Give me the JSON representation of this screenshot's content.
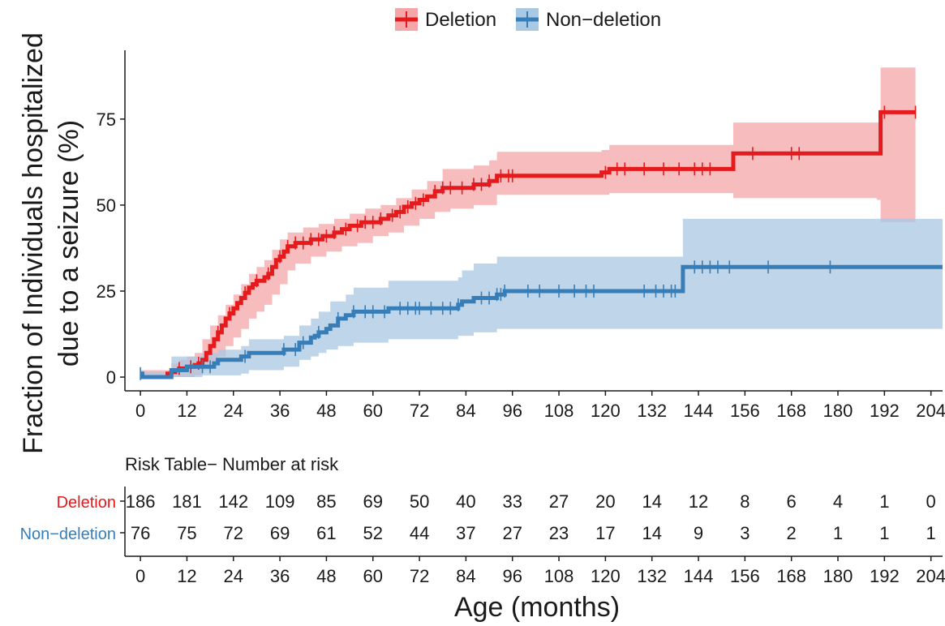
{
  "chart_data": {
    "type": "step",
    "title": "",
    "xlabel": "Age (months)",
    "ylabel_lines": [
      "Fraction of Individuals hospitalized",
      "due to a seizure (%)"
    ],
    "xlim": [
      -4,
      207
    ],
    "ylim": [
      -4,
      95
    ],
    "x_ticks": [
      0,
      12,
      24,
      36,
      48,
      60,
      72,
      84,
      96,
      108,
      120,
      132,
      144,
      156,
      168,
      180,
      192,
      204
    ],
    "y_ticks": [
      0,
      25,
      50,
      75
    ],
    "legend_position": "top",
    "series": [
      {
        "name": "Deletion",
        "color": "#e41a1c",
        "band_color": "#f4a6a8",
        "steps": [
          [
            0,
            0
          ],
          [
            6,
            0
          ],
          [
            7,
            1
          ],
          [
            8,
            1.5
          ],
          [
            9,
            2
          ],
          [
            10,
            2.5
          ],
          [
            12,
            3
          ],
          [
            14,
            3.5
          ],
          [
            15,
            4
          ],
          [
            16,
            5
          ],
          [
            17,
            7
          ],
          [
            18,
            9
          ],
          [
            19,
            11
          ],
          [
            20,
            13
          ],
          [
            21,
            15
          ],
          [
            22,
            17
          ],
          [
            23,
            18.5
          ],
          [
            24,
            20
          ],
          [
            25,
            21.5
          ],
          [
            26,
            23
          ],
          [
            27,
            24.5
          ],
          [
            28,
            26
          ],
          [
            29,
            27
          ],
          [
            30,
            28
          ],
          [
            32,
            29
          ],
          [
            33,
            30
          ],
          [
            34,
            32
          ],
          [
            35,
            34
          ],
          [
            36,
            35
          ],
          [
            37,
            36.5
          ],
          [
            38,
            38
          ],
          [
            40,
            39
          ],
          [
            44,
            40
          ],
          [
            47,
            41
          ],
          [
            50,
            42
          ],
          [
            52,
            43
          ],
          [
            54,
            44
          ],
          [
            57,
            45
          ],
          [
            62,
            46
          ],
          [
            64,
            47
          ],
          [
            66,
            48
          ],
          [
            68,
            49.5
          ],
          [
            70,
            50.5
          ],
          [
            72,
            51.5
          ],
          [
            74,
            52.5
          ],
          [
            76,
            54
          ],
          [
            78,
            55
          ],
          [
            86,
            56
          ],
          [
            90,
            57
          ],
          [
            92,
            58.5
          ],
          [
            119,
            59.5
          ],
          [
            121,
            60.5
          ],
          [
            153,
            65
          ],
          [
            190,
            65
          ],
          [
            191,
            77
          ],
          [
            200,
            77
          ]
        ],
        "ci_upper": [
          [
            0,
            2
          ],
          [
            6,
            2
          ],
          [
            8,
            4
          ],
          [
            10,
            5
          ],
          [
            12,
            6
          ],
          [
            14,
            7
          ],
          [
            16,
            11
          ],
          [
            18,
            15
          ],
          [
            20,
            18
          ],
          [
            22,
            21
          ],
          [
            24,
            24
          ],
          [
            26,
            27
          ],
          [
            28,
            30
          ],
          [
            30,
            32
          ],
          [
            32,
            34
          ],
          [
            34,
            37
          ],
          [
            36,
            40
          ],
          [
            38,
            42
          ],
          [
            42,
            43.5
          ],
          [
            46,
            44.5
          ],
          [
            50,
            46
          ],
          [
            54,
            47.5
          ],
          [
            58,
            49
          ],
          [
            62,
            50
          ],
          [
            66,
            52
          ],
          [
            70,
            54.5
          ],
          [
            74,
            57
          ],
          [
            78,
            60.5
          ],
          [
            86,
            61.5
          ],
          [
            90,
            63
          ],
          [
            92,
            65.5
          ],
          [
            119,
            66
          ],
          [
            121,
            67.5
          ],
          [
            153,
            74
          ],
          [
            190,
            74
          ],
          [
            191,
            90
          ],
          [
            200,
            90
          ]
        ],
        "ci_lower": [
          [
            0,
            0
          ],
          [
            6,
            0
          ],
          [
            10,
            0
          ],
          [
            14,
            0.5
          ],
          [
            16,
            2
          ],
          [
            18,
            4
          ],
          [
            20,
            6
          ],
          [
            22,
            9
          ],
          [
            24,
            11.5
          ],
          [
            26,
            14
          ],
          [
            28,
            17
          ],
          [
            30,
            19
          ],
          [
            32,
            21
          ],
          [
            34,
            24
          ],
          [
            36,
            27
          ],
          [
            38,
            31
          ],
          [
            40,
            33
          ],
          [
            44,
            35
          ],
          [
            48,
            36.5
          ],
          [
            52,
            38
          ],
          [
            56,
            39
          ],
          [
            60,
            41
          ],
          [
            64,
            42
          ],
          [
            68,
            44
          ],
          [
            72,
            46
          ],
          [
            76,
            48
          ],
          [
            80,
            49
          ],
          [
            86,
            50
          ],
          [
            92,
            53
          ],
          [
            121,
            53.5
          ],
          [
            153,
            52
          ],
          [
            190,
            51.5
          ],
          [
            191,
            45
          ],
          [
            200,
            45
          ]
        ],
        "censor_x": [
          10,
          13,
          15,
          20,
          23,
          27,
          30,
          33,
          36,
          38,
          40,
          42,
          44,
          46,
          48,
          50,
          53,
          56,
          58,
          60,
          62,
          65,
          67,
          69,
          71,
          73,
          76,
          78,
          80,
          83,
          86,
          88,
          90,
          93,
          95,
          96,
          120,
          123,
          125,
          130,
          135,
          139,
          143,
          145,
          147,
          158,
          168,
          170,
          192,
          200
        ]
      },
      {
        "name": "Non-deletion",
        "color": "#377eb8",
        "band_color": "#a9c8e3",
        "steps": [
          [
            0,
            1
          ],
          [
            0.5,
            0
          ],
          [
            8,
            0
          ],
          [
            8,
            2
          ],
          [
            11,
            2
          ],
          [
            12,
            3
          ],
          [
            19,
            4
          ],
          [
            20,
            5
          ],
          [
            26,
            6
          ],
          [
            28,
            7
          ],
          [
            37,
            8
          ],
          [
            41,
            10
          ],
          [
            44,
            11.5
          ],
          [
            45,
            12
          ],
          [
            46,
            13
          ],
          [
            48,
            14
          ],
          [
            49,
            15
          ],
          [
            51,
            17
          ],
          [
            53,
            18
          ],
          [
            55,
            19
          ],
          [
            64,
            20
          ],
          [
            82,
            21
          ],
          [
            83,
            22
          ],
          [
            86,
            23
          ],
          [
            92,
            24
          ],
          [
            94,
            25
          ],
          [
            139,
            25
          ],
          [
            140,
            32
          ],
          [
            210,
            32
          ]
        ],
        "ci_upper": [
          [
            0,
            2
          ],
          [
            0.5,
            1.5
          ],
          [
            8,
            1.5
          ],
          [
            8,
            6
          ],
          [
            14,
            6
          ],
          [
            16,
            7
          ],
          [
            20,
            8
          ],
          [
            26,
            9
          ],
          [
            28,
            11
          ],
          [
            37,
            12
          ],
          [
            41,
            15
          ],
          [
            44,
            17
          ],
          [
            46,
            19
          ],
          [
            49,
            22
          ],
          [
            53,
            24
          ],
          [
            55,
            26
          ],
          [
            64,
            28
          ],
          [
            82,
            29
          ],
          [
            83,
            31
          ],
          [
            86,
            33
          ],
          [
            92,
            35
          ],
          [
            139,
            35
          ],
          [
            140,
            46
          ],
          [
            210,
            46
          ]
        ],
        "ci_lower": [
          [
            0,
            0
          ],
          [
            8,
            0
          ],
          [
            14,
            0
          ],
          [
            16,
            0.5
          ],
          [
            26,
            1
          ],
          [
            28,
            2
          ],
          [
            37,
            3
          ],
          [
            41,
            5
          ],
          [
            44,
            6
          ],
          [
            46,
            7
          ],
          [
            48,
            8
          ],
          [
            51,
            9
          ],
          [
            55,
            10
          ],
          [
            64,
            11
          ],
          [
            82,
            12
          ],
          [
            86,
            13
          ],
          [
            92,
            14
          ],
          [
            139,
            14
          ],
          [
            140,
            14
          ],
          [
            210,
            14
          ]
        ],
        "censor_x": [
          0,
          16,
          18,
          27,
          37,
          40,
          42,
          46,
          51,
          55,
          58,
          60,
          63,
          67,
          69,
          71,
          72,
          75,
          78,
          80,
          82,
          88,
          90,
          92,
          93,
          94,
          100,
          103,
          108,
          112,
          115,
          117,
          130,
          133,
          135,
          137,
          138,
          143,
          145,
          147,
          149,
          152,
          162,
          178
        ]
      }
    ],
    "risk_table": {
      "title": "Risk Table− Number at risk",
      "time_points": [
        0,
        12,
        24,
        36,
        48,
        60,
        72,
        84,
        96,
        108,
        120,
        132,
        144,
        156,
        168,
        180,
        192,
        204
      ],
      "rows": [
        {
          "label": "Deletion",
          "color": "#e41a1c",
          "values": [
            186,
            181,
            142,
            109,
            85,
            69,
            50,
            40,
            33,
            27,
            20,
            14,
            12,
            8,
            6,
            4,
            1,
            0
          ]
        },
        {
          "label": "Non−deletion",
          "color": "#377eb8",
          "values": [
            76,
            75,
            72,
            69,
            61,
            52,
            44,
            37,
            27,
            23,
            17,
            14,
            9,
            3,
            2,
            1,
            1,
            1
          ]
        }
      ]
    }
  },
  "legend": [
    {
      "label": "Deletion",
      "color": "#e41a1c",
      "band_color": "#f4a6a8"
    },
    {
      "label": "Non−deletion",
      "color": "#377eb8",
      "band_color": "#a9c8e3"
    }
  ]
}
